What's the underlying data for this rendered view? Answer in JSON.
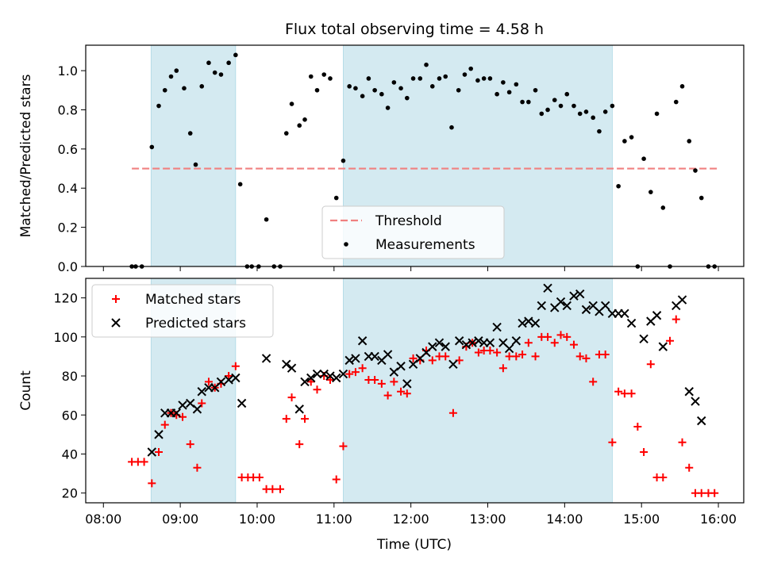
{
  "chart_data": {
    "title": "Flux total observing time = 4.58 h",
    "xlabel": "Time (UTC)",
    "x_ticks": [
      "08:00",
      "09:00",
      "10:00",
      "11:00",
      "12:00",
      "13:00",
      "14:00",
      "15:00",
      "16:00"
    ],
    "x_range_hours": [
      7.77,
      16.33
    ],
    "shaded_intervals_hours": [
      [
        8.62,
        9.72
      ],
      [
        11.12,
        14.62
      ]
    ],
    "colors": {
      "shade": "#d4eaf1",
      "threshold": "#f08080",
      "measurements": "#000000",
      "matched": "#ff0000",
      "predicted": "#000000"
    },
    "panels": [
      {
        "type": "scatter",
        "ylabel": "Matched/Predicted stars",
        "ylim": [
          0,
          1.13
        ],
        "y_ticks": [
          "0.0",
          "0.2",
          "0.4",
          "0.6",
          "0.8",
          "1.0"
        ],
        "threshold": {
          "name": "Threshold",
          "y": 0.5,
          "x_range": [
            8.37,
            15.98
          ]
        },
        "legend": [
          "Threshold",
          "Measurements"
        ],
        "legend_position": "lower-center",
        "series": [
          {
            "name": "Measurements",
            "marker": "dot",
            "x": [
              8.37,
              8.42,
              8.5,
              8.63,
              8.72,
              8.8,
              8.88,
              8.95,
              9.05,
              9.13,
              9.2,
              9.28,
              9.37,
              9.45,
              9.53,
              9.63,
              9.72,
              9.78,
              9.87,
              9.93,
              10.02,
              10.12,
              10.22,
              10.3,
              10.38,
              10.45,
              10.55,
              10.62,
              10.7,
              10.78,
              10.87,
              10.95,
              11.03,
              11.12,
              11.2,
              11.28,
              11.37,
              11.45,
              11.53,
              11.62,
              11.7,
              11.78,
              11.87,
              11.95,
              12.03,
              12.12,
              12.2,
              12.28,
              12.37,
              12.45,
              12.53,
              12.62,
              12.7,
              12.78,
              12.87,
              12.95,
              13.03,
              13.12,
              13.2,
              13.28,
              13.37,
              13.45,
              13.53,
              13.62,
              13.7,
              13.78,
              13.87,
              13.95,
              14.03,
              14.12,
              14.2,
              14.28,
              14.37,
              14.45,
              14.53,
              14.62,
              14.7,
              14.78,
              14.87,
              14.95,
              15.03,
              15.12,
              15.2,
              15.28,
              15.37,
              15.45,
              15.53,
              15.62,
              15.7,
              15.78,
              15.87,
              15.95
            ],
            "y": [
              0.0,
              0.0,
              0.0,
              0.61,
              0.82,
              0.9,
              0.97,
              1.0,
              0.91,
              0.68,
              0.52,
              0.92,
              1.04,
              0.99,
              0.98,
              1.04,
              1.08,
              0.42,
              0.0,
              0.0,
              0.0,
              0.24,
              0.0,
              0.0,
              0.68,
              0.83,
              0.72,
              0.75,
              0.97,
              0.9,
              0.98,
              0.96,
              0.35,
              0.54,
              0.92,
              0.91,
              0.87,
              0.96,
              0.9,
              0.88,
              0.81,
              0.94,
              0.91,
              0.86,
              0.96,
              0.96,
              1.03,
              0.92,
              0.96,
              0.97,
              0.71,
              0.9,
              0.98,
              1.01,
              0.95,
              0.96,
              0.96,
              0.88,
              0.94,
              0.89,
              0.93,
              0.84,
              0.84,
              0.9,
              0.78,
              0.8,
              0.85,
              0.82,
              0.88,
              0.82,
              0.78,
              0.79,
              0.76,
              0.69,
              0.79,
              0.82,
              0.41,
              0.64,
              0.66,
              0.0,
              0.55,
              0.38,
              0.78,
              0.3,
              0.0,
              0.84,
              0.92,
              0.64,
              0.49,
              0.35,
              0.0,
              0.0
            ]
          }
        ]
      },
      {
        "type": "scatter",
        "ylabel": "Count",
        "ylim": [
          15,
          130
        ],
        "y_ticks": [
          "20",
          "40",
          "60",
          "80",
          "100",
          "120"
        ],
        "legend": [
          "Matched stars",
          "Predicted stars"
        ],
        "legend_position": "upper-left",
        "series": [
          {
            "name": "Matched stars",
            "marker": "plus",
            "x": [
              8.37,
              8.45,
              8.53,
              8.63,
              8.72,
              8.8,
              8.88,
              8.95,
              9.03,
              9.13,
              9.22,
              9.28,
              9.37,
              9.45,
              9.53,
              9.63,
              9.72,
              9.8,
              9.88,
              9.95,
              10.03,
              10.12,
              10.2,
              10.3,
              10.38,
              10.45,
              10.55,
              10.62,
              10.7,
              10.78,
              10.87,
              10.95,
              11.03,
              11.12,
              11.2,
              11.28,
              11.37,
              11.45,
              11.53,
              11.62,
              11.7,
              11.78,
              11.87,
              11.95,
              12.03,
              12.12,
              12.2,
              12.28,
              12.37,
              12.45,
              12.55,
              12.63,
              12.72,
              12.8,
              12.88,
              12.95,
              13.03,
              13.12,
              13.2,
              13.28,
              13.37,
              13.45,
              13.53,
              13.62,
              13.7,
              13.78,
              13.87,
              13.95,
              14.03,
              14.12,
              14.2,
              14.28,
              14.37,
              14.45,
              14.53,
              14.62,
              14.7,
              14.78,
              14.87,
              14.95,
              15.03,
              15.12,
              15.2,
              15.28,
              15.37,
              15.45,
              15.53,
              15.62,
              15.7,
              15.78,
              15.87,
              15.95
            ],
            "y": [
              36,
              36,
              36,
              25,
              41,
              55,
              61,
              60,
              59,
              45,
              33,
              66,
              77,
              74,
              76,
              80,
              85,
              28,
              28,
              28,
              28,
              22,
              22,
              22,
              58,
              69,
              45,
              58,
              77,
              73,
              80,
              78,
              27,
              44,
              81,
              82,
              84,
              78,
              78,
              76,
              70,
              77,
              72,
              71,
              89,
              88,
              93,
              88,
              90,
              90,
              61,
              88,
              95,
              97,
              92,
              93,
              93,
              92,
              84,
              90,
              90,
              91,
              97,
              90,
              100,
              100,
              97,
              101,
              100,
              96,
              90,
              89,
              77,
              91,
              91,
              46,
              72,
              71,
              71,
              54,
              41,
              86,
              28,
              28,
              98,
              109,
              46,
              33,
              20,
              20,
              20,
              20
            ]
          },
          {
            "name": "Predicted stars",
            "marker": "cross",
            "x": [
              8.63,
              8.72,
              8.8,
              8.88,
              8.95,
              9.03,
              9.13,
              9.22,
              9.28,
              9.37,
              9.45,
              9.53,
              9.63,
              9.72,
              9.8,
              10.12,
              10.38,
              10.45,
              10.55,
              10.62,
              10.7,
              10.78,
              10.87,
              10.95,
              11.03,
              11.12,
              11.2,
              11.28,
              11.37,
              11.45,
              11.53,
              11.62,
              11.7,
              11.78,
              11.87,
              11.95,
              12.03,
              12.12,
              12.2,
              12.28,
              12.37,
              12.45,
              12.55,
              12.63,
              12.72,
              12.8,
              12.88,
              12.95,
              13.03,
              13.12,
              13.2,
              13.28,
              13.37,
              13.45,
              13.53,
              13.62,
              13.7,
              13.78,
              13.87,
              13.95,
              14.03,
              14.12,
              14.2,
              14.28,
              14.37,
              14.45,
              14.53,
              14.62,
              14.7,
              14.78,
              14.87,
              15.03,
              15.12,
              15.2,
              15.28,
              15.45,
              15.53,
              15.62,
              15.7,
              15.78
            ],
            "y": [
              41,
              50,
              61,
              61,
              61,
              65,
              66,
              63,
              72,
              74,
              74,
              77,
              78,
              79,
              66,
              89,
              86,
              84,
              63,
              77,
              79,
              81,
              81,
              80,
              79,
              81,
              88,
              89,
              98,
              90,
              90,
              88,
              91,
              82,
              85,
              76,
              86,
              89,
              92,
              95,
              97,
              95,
              86,
              98,
              96,
              97,
              98,
              97,
              97,
              105,
              97,
              94,
              98,
              107,
              108,
              107,
              116,
              125,
              115,
              118,
              116,
              121,
              122,
              114,
              116,
              113,
              116,
              112,
              112,
              112,
              107,
              99,
              108,
              111,
              95,
              116,
              119,
              72,
              67,
              57
            ]
          }
        ]
      }
    ]
  }
}
